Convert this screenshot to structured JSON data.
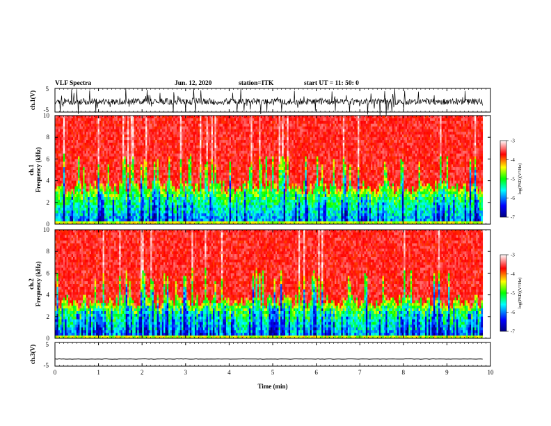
{
  "header": {
    "title": "VLF Spectra",
    "date": "Jun. 12, 2020",
    "station": "station=ITK",
    "start": "start UT = 11: 50: 0"
  },
  "chart_data": [
    {
      "type": "line",
      "panel": "ch1-waveform",
      "ylabel": "ch.1(V)",
      "ylim": [
        -5,
        5
      ],
      "yticks": [
        "5",
        "-5"
      ],
      "x_unit": "min",
      "xlim": [
        0,
        10
      ]
    },
    {
      "type": "heatmap",
      "panel": "ch1-spectrogram",
      "ylabel": "ch.1\nFrequency (kHz)",
      "ylabel_line1": "ch.1",
      "ylabel_line2": "Frequency (kHz)",
      "ylim": [
        0,
        10
      ],
      "yticks": [
        "0",
        "2",
        "4",
        "6",
        "8",
        "10"
      ],
      "colorbar": {
        "label": "log(PSD)(V²/Hz)",
        "range": [
          -7,
          -3
        ],
        "ticks": [
          "-3",
          "-4",
          "-5",
          "-6",
          "-7"
        ],
        "colors": [
          "#000080",
          "#0000ff",
          "#00ffff",
          "#00ff00",
          "#ffff00",
          "#ff0000",
          "#ffffff"
        ]
      }
    },
    {
      "type": "heatmap",
      "panel": "ch2-spectrogram",
      "ylabel": "ch.2\nFrequency (kHz)",
      "ylabel_line1": "ch.2",
      "ylabel_line2": "Frequency (kHz)",
      "ylim": [
        0,
        10
      ],
      "yticks": [
        "0",
        "2",
        "4",
        "6",
        "8",
        "10"
      ],
      "colorbar": {
        "label": "log(PSD)(V²/Hz)",
        "range": [
          -7,
          -3
        ],
        "ticks": [
          "-3",
          "-4",
          "-5",
          "-6",
          "-7"
        ],
        "colors": [
          "#000080",
          "#0000ff",
          "#00ffff",
          "#00ff00",
          "#ffff00",
          "#ff0000",
          "#ffffff"
        ]
      }
    },
    {
      "type": "line",
      "panel": "ch3-waveform",
      "ylabel": "ch.3(V)",
      "ylim": [
        -5,
        5
      ],
      "yticks": [
        "5",
        "-5"
      ],
      "xlabel": "Time (min)",
      "xlim": [
        0,
        10
      ],
      "xticks": [
        "0",
        "1",
        "2",
        "3",
        "4",
        "5",
        "6",
        "7",
        "8",
        "9",
        "10"
      ],
      "level": -2
    }
  ]
}
